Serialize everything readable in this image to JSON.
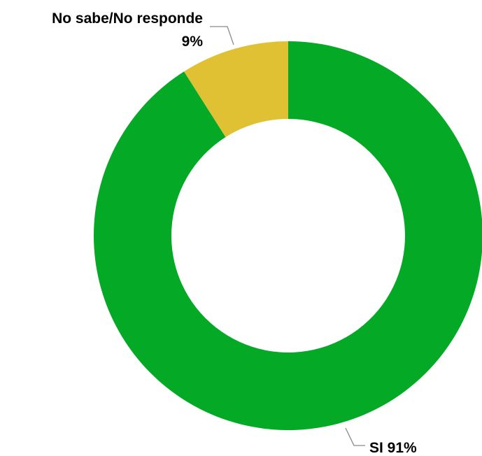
{
  "chart_data": {
    "type": "pie",
    "variant": "donut",
    "slices": [
      {
        "label": "SI",
        "value": 91,
        "display": "SI 91%",
        "color": "#04AA25"
      },
      {
        "label": "No sabe/No responde",
        "value": 9,
        "display": "9%",
        "color": "#E0C134"
      }
    ],
    "unit": "%"
  }
}
